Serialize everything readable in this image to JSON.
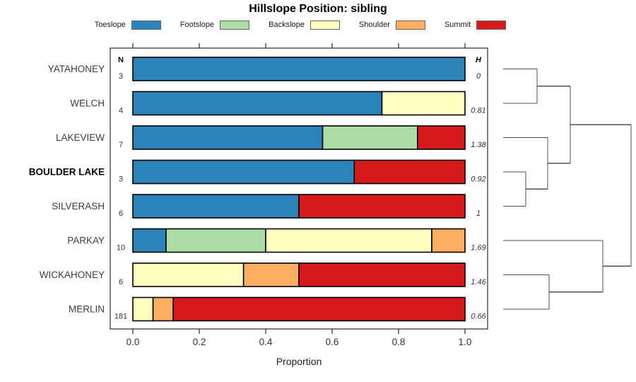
{
  "chart_data": {
    "type": "bar",
    "orientation": "horizontal-stacked-proportion",
    "title": "Hillslope Position: sibling",
    "xlabel": "Proportion",
    "xlim": [
      0,
      1
    ],
    "xticks": [
      0.0,
      0.2,
      0.4,
      0.6,
      0.8,
      1.0
    ],
    "grid": false,
    "legend_position": "top",
    "columns": {
      "n_header": "N",
      "h_header": "H"
    },
    "legend": [
      {
        "label": "Toeslope",
        "color": "#2B83BA"
      },
      {
        "label": "Footslope",
        "color": "#ABDDA4"
      },
      {
        "label": "Backslope",
        "color": "#FFFFBF"
      },
      {
        "label": "Shoulder",
        "color": "#FDAE61"
      },
      {
        "label": "Summit",
        "color": "#D7191C"
      }
    ],
    "rows": [
      {
        "label": "YATAHONEY",
        "n": "3",
        "shannon_h": "0",
        "bold": false,
        "segments": [
          {
            "position": "Toeslope",
            "proportion": 1.0
          }
        ]
      },
      {
        "label": "WELCH",
        "n": "4",
        "shannon_h": "0.81",
        "bold": false,
        "segments": [
          {
            "position": "Toeslope",
            "proportion": 0.75
          },
          {
            "position": "Backslope",
            "proportion": 0.25
          }
        ]
      },
      {
        "label": "LAKEVIEW",
        "n": "7",
        "shannon_h": "1.38",
        "bold": false,
        "segments": [
          {
            "position": "Toeslope",
            "proportion": 0.5714
          },
          {
            "position": "Footslope",
            "proportion": 0.2857
          },
          {
            "position": "Summit",
            "proportion": 0.1429
          }
        ]
      },
      {
        "label": "BOULDER LAKE",
        "n": "3",
        "shannon_h": "0.92",
        "bold": true,
        "segments": [
          {
            "position": "Toeslope",
            "proportion": 0.6667
          },
          {
            "position": "Summit",
            "proportion": 0.3333
          }
        ]
      },
      {
        "label": "SILVERASH",
        "n": "6",
        "shannon_h": "1",
        "bold": false,
        "segments": [
          {
            "position": "Toeslope",
            "proportion": 0.5
          },
          {
            "position": "Summit",
            "proportion": 0.5
          }
        ]
      },
      {
        "label": "PARKAY",
        "n": "10",
        "shannon_h": "1.69",
        "bold": false,
        "segments": [
          {
            "position": "Toeslope",
            "proportion": 0.1
          },
          {
            "position": "Footslope",
            "proportion": 0.3
          },
          {
            "position": "Backslope",
            "proportion": 0.5
          },
          {
            "position": "Shoulder",
            "proportion": 0.1
          }
        ]
      },
      {
        "label": "WICKAHONEY",
        "n": "6",
        "shannon_h": "1.46",
        "bold": false,
        "segments": [
          {
            "position": "Backslope",
            "proportion": 0.3333
          },
          {
            "position": "Shoulder",
            "proportion": 0.1667
          },
          {
            "position": "Summit",
            "proportion": 0.5
          }
        ]
      },
      {
        "label": "MERLIN",
        "n": "181",
        "shannon_h": "0.66",
        "bold": false,
        "segments": [
          {
            "position": "Backslope",
            "proportion": 0.0608
          },
          {
            "position": "Shoulder",
            "proportion": 0.0608
          },
          {
            "position": "Summit",
            "proportion": 0.8784
          }
        ]
      }
    ],
    "dendrogram": {
      "line_color": "#505050",
      "segments": [
        [
          712,
          97.5,
          760,
          97.5
        ],
        [
          712,
          146,
          760,
          146
        ],
        [
          760,
          97.5,
          760,
          146
        ],
        [
          760,
          121.8,
          807,
          121.8
        ],
        [
          712,
          194.5,
          775,
          194.5
        ],
        [
          712,
          243,
          744,
          243
        ],
        [
          712,
          291.5,
          744,
          291.5
        ],
        [
          744,
          243,
          744,
          291.5
        ],
        [
          744,
          267.3,
          775,
          267.3
        ],
        [
          775,
          194.5,
          775,
          267.3
        ],
        [
          775,
          230.9,
          807,
          230.9
        ],
        [
          807,
          121.8,
          807,
          230.9
        ],
        [
          807,
          176.3,
          893,
          176.3
        ],
        [
          712,
          340,
          853,
          340
        ],
        [
          712,
          388.5,
          777,
          388.5
        ],
        [
          712,
          437,
          777,
          437
        ],
        [
          777,
          388.5,
          777,
          437
        ],
        [
          777,
          412.8,
          853,
          412.8
        ],
        [
          853,
          340,
          853,
          412.8
        ],
        [
          853,
          376.4,
          893,
          376.4
        ],
        [
          893,
          176.3,
          893,
          376.4
        ]
      ]
    }
  }
}
